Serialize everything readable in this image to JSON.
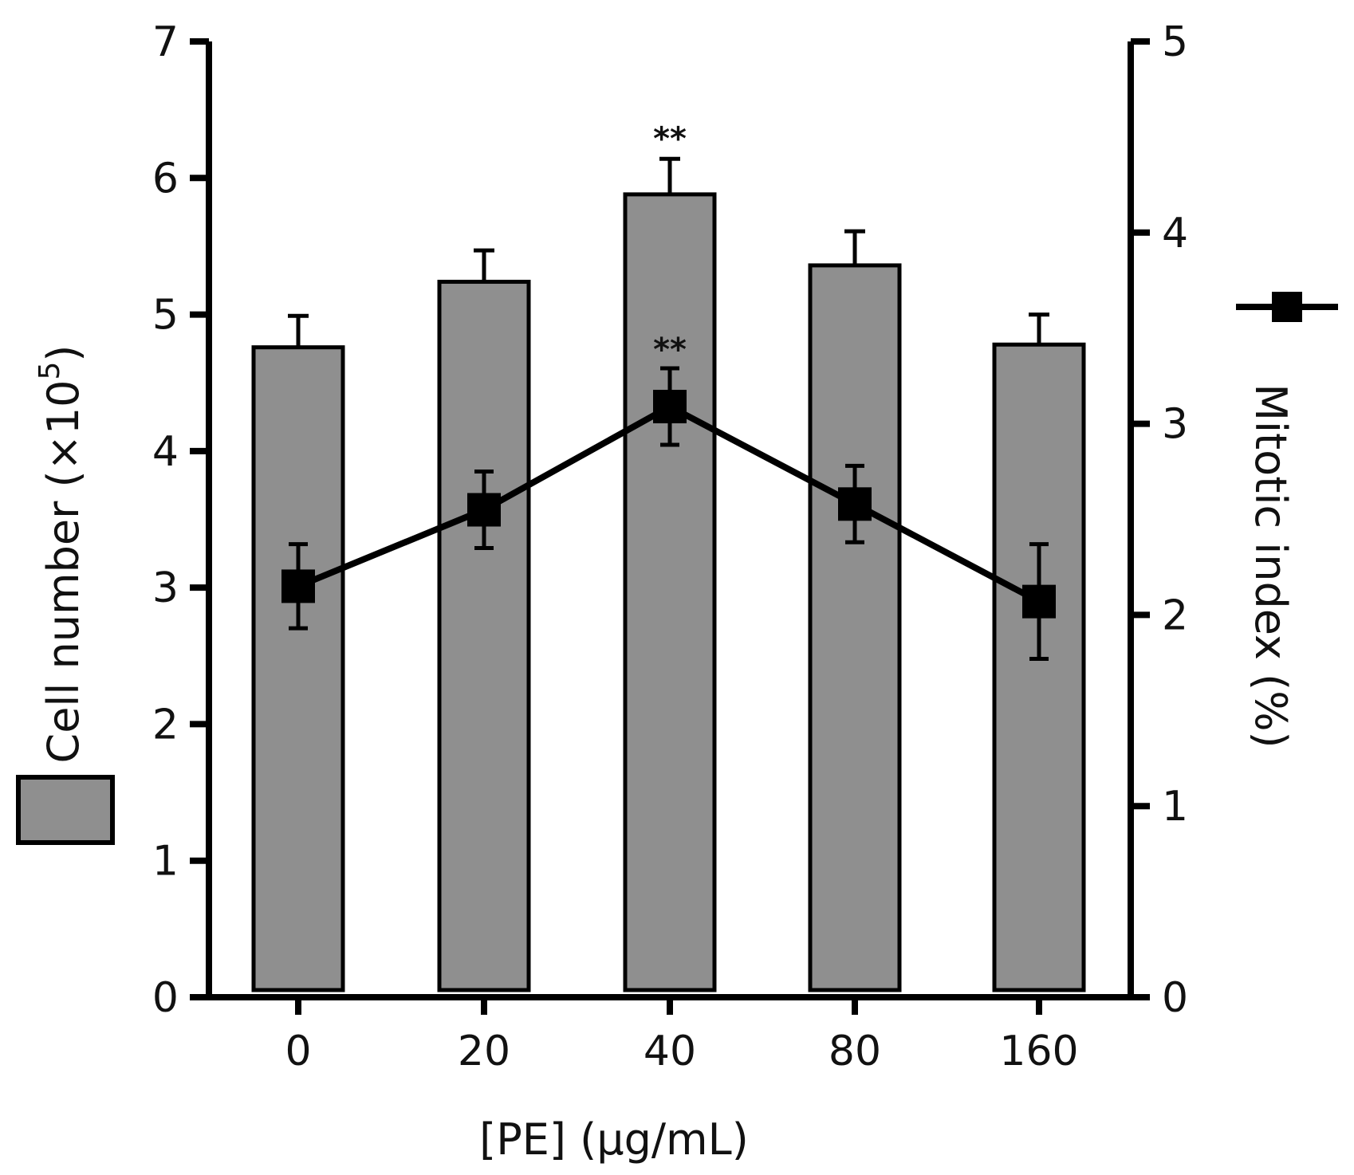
{
  "chart_data": {
    "type": "bar",
    "categories": [
      "0",
      "20",
      "40",
      "80",
      "160"
    ],
    "xlabel": "[PE]  (µg/mL)",
    "series": [
      {
        "name": "Cell number",
        "kind": "bar",
        "axis": "left",
        "values": [
          4.76,
          5.24,
          5.88,
          5.36,
          4.78
        ],
        "errors": [
          0.23,
          0.23,
          0.26,
          0.25,
          0.22
        ],
        "significance": [
          "",
          "",
          "**",
          "",
          ""
        ],
        "color": "#8f8f8f"
      },
      {
        "name": "Mitotic index",
        "kind": "line",
        "axis": "right",
        "values": [
          2.15,
          2.55,
          3.09,
          2.58,
          2.07
        ],
        "errors": [
          0.22,
          0.2,
          0.2,
          0.2,
          0.3
        ],
        "significance": [
          "",
          "",
          "**",
          "",
          ""
        ],
        "color": "#000000"
      }
    ],
    "y_left": {
      "label_main": "Cell number (×10",
      "label_sup": "5",
      "label_close": ")",
      "lim": [
        0,
        7
      ],
      "ticks": [
        0,
        1,
        2,
        3,
        4,
        5,
        6,
        7
      ]
    },
    "y_right": {
      "label": "Mitotic index (%)",
      "lim": [
        0,
        5
      ],
      "ticks": [
        0,
        1,
        2,
        3,
        4,
        5
      ]
    },
    "legend": {
      "bar_location": "left",
      "line_location": "right"
    }
  }
}
